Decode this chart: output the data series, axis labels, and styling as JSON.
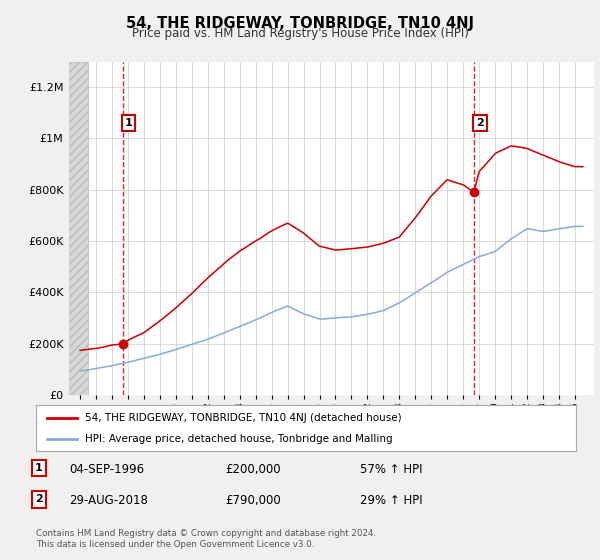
{
  "title": "54, THE RIDGEWAY, TONBRIDGE, TN10 4NJ",
  "subtitle": "Price paid vs. HM Land Registry's House Price Index (HPI)",
  "footer": "Contains HM Land Registry data © Crown copyright and database right 2024.\nThis data is licensed under the Open Government Licence v3.0.",
  "legend_line1": "54, THE RIDGEWAY, TONBRIDGE, TN10 4NJ (detached house)",
  "legend_line2": "HPI: Average price, detached house, Tonbridge and Malling",
  "annotation1_date": "04-SEP-1996",
  "annotation1_price": "£200,000",
  "annotation1_hpi": "57% ↑ HPI",
  "annotation2_date": "29-AUG-2018",
  "annotation2_price": "£790,000",
  "annotation2_hpi": "29% ↑ HPI",
  "sale1_x": 1996.67,
  "sale1_y": 200000,
  "sale2_x": 2018.67,
  "sale2_y": 790000,
  "vline1_x": 1996.67,
  "vline2_x": 2018.67,
  "ylim": [
    0,
    1300000
  ],
  "xlim": [
    1993.3,
    2026.2
  ],
  "property_color": "#cc0000",
  "hpi_color": "#88aadd",
  "background_color": "#f0f0f0",
  "plot_bg_color": "#ffffff",
  "hatch_region_end": 1994.5,
  "hpi_anchors_x": [
    1994.0,
    1995.0,
    1996.0,
    1997.0,
    1998.0,
    1999.0,
    2000.0,
    2001.0,
    2002.0,
    2003.0,
    2004.0,
    2005.0,
    2006.0,
    2007.0,
    2008.0,
    2009.0,
    2010.0,
    2011.0,
    2012.0,
    2013.0,
    2014.0,
    2015.0,
    2016.0,
    2017.0,
    2018.0,
    2019.0,
    2020.0,
    2021.0,
    2022.0,
    2023.0,
    2024.0,
    2025.0
  ],
  "hpi_anchors_y": [
    90000,
    100000,
    112000,
    125000,
    140000,
    155000,
    175000,
    195000,
    215000,
    240000,
    265000,
    290000,
    320000,
    345000,
    315000,
    295000,
    300000,
    305000,
    315000,
    330000,
    360000,
    400000,
    440000,
    480000,
    510000,
    540000,
    560000,
    610000,
    650000,
    640000,
    650000,
    660000
  ],
  "prop_anchors_x": [
    1994.0,
    1995.0,
    1996.0,
    1996.67,
    1997.0,
    1998.0,
    1999.0,
    2000.0,
    2001.0,
    2002.0,
    2003.0,
    2004.0,
    2005.0,
    2006.0,
    2007.0,
    2008.0,
    2009.0,
    2010.0,
    2011.0,
    2012.0,
    2013.0,
    2014.0,
    2015.0,
    2016.0,
    2017.0,
    2018.0,
    2018.67,
    2019.0,
    2020.0,
    2021.0,
    2022.0,
    2023.0,
    2024.0,
    2025.0
  ],
  "prop_anchors_y": [
    175000,
    183000,
    196000,
    200000,
    215000,
    245000,
    290000,
    340000,
    395000,
    455000,
    510000,
    560000,
    600000,
    640000,
    670000,
    630000,
    580000,
    565000,
    570000,
    575000,
    590000,
    615000,
    690000,
    775000,
    840000,
    820000,
    790000,
    870000,
    940000,
    970000,
    960000,
    935000,
    910000,
    890000
  ]
}
